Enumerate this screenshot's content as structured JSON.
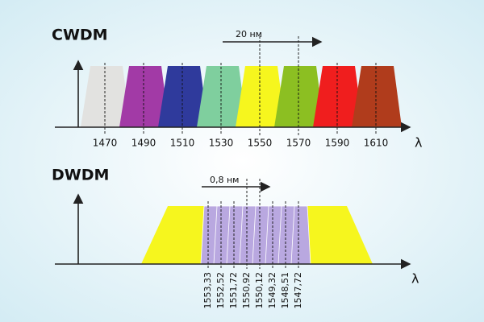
{
  "cwdm": {
    "title": "CWDM",
    "spacing_label": "20 нм",
    "axis_label": "λ",
    "channels": [
      {
        "label": "1470",
        "color": "#e2e2e0"
      },
      {
        "label": "1490",
        "color": "#a23aa6"
      },
      {
        "label": "1510",
        "color": "#2f3a9c"
      },
      {
        "label": "1530",
        "color": "#7fcf9e"
      },
      {
        "label": "1550",
        "color": "#f6f61e"
      },
      {
        "label": "1570",
        "color": "#8cbf22"
      },
      {
        "label": "1590",
        "color": "#f01e1e"
      },
      {
        "label": "1610",
        "color": "#b03c1c"
      }
    ]
  },
  "dwdm": {
    "title": "DWDM",
    "spacing_label": "0,8 нм",
    "axis_label": "λ",
    "band_color": "#f6f61e",
    "channel_color": "#b9a8e0",
    "channels": [
      "1553,33",
      "1552,52",
      "1551,72",
      "1550,92",
      "1550,12",
      "1549,32",
      "1548,51",
      "1547,72"
    ]
  }
}
